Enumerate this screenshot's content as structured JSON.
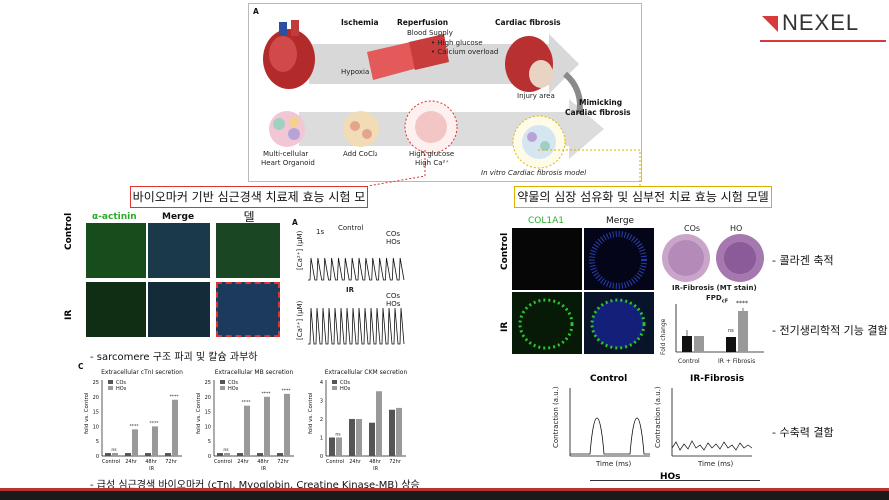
{
  "brand": {
    "logo_text": "NEXEL"
  },
  "panelA": {
    "label": "A",
    "ischemia": "Ischemia",
    "reperfusion": "Reperfusion",
    "blood_supply": "Blood Supply",
    "high_glucose_bullet": "• High glucose",
    "calcium_bullet": "• Calcium overload",
    "hypoxia": "Hypoxia",
    "cardiac_fibrosis": "Cardiac fibrosis",
    "injury_area": "Injury area",
    "mimicking": "Mimicking",
    "mimicking2": "Cardiac fibrosis",
    "organoid1": "Multi-cellular",
    "organoid2": "Heart Organoid",
    "cocl2": "Add CoCl₂",
    "hg1": "High glucose",
    "hg2": "High Ca²⁺",
    "model": "In vitro Cardiac fibrosis model"
  },
  "boxes": {
    "left_title": "바이오마커 기반 심근경색 치료제 효능 시험 모델",
    "right_title": "약물의 심장 섬유화 및 심부전 치료 효능 시험 모델"
  },
  "left": {
    "col1": "α-actinin",
    "col2": "Merge",
    "row1": "Control",
    "row2": "IR",
    "panelA_label": "A",
    "trace1_title": "Control",
    "trace2_title": "IR",
    "legend1": "COs",
    "legend2": "HOs",
    "scale": "1s",
    "yaxis": "[Ca²⁺] (μM)",
    "note1": "- sarcomere 구조 파괴 및 칼슘 과부하",
    "panelC_label": "C",
    "note2": "- 급성 심근경색 바이오마커 (cTnI, Myoglobin, Creatine Kinase-MB) 상승"
  },
  "bars": [
    {
      "title": "Extracellular cTnI secretion",
      "ylabel": "fold vs. Control",
      "ylim": [
        0,
        25
      ],
      "ticks": [
        "0",
        "5",
        "10",
        "15",
        "20",
        "25"
      ],
      "categories": [
        "Control",
        "24hr",
        "48hr",
        "72hr"
      ],
      "xgroup": "IR",
      "cos": [
        1,
        1,
        1,
        1
      ],
      "hos": [
        1,
        9,
        10,
        19
      ],
      "annot": [
        "ns",
        "****",
        "****",
        "****"
      ]
    },
    {
      "title": "Extracellular MB secretion",
      "ylabel": "fold vs. Control",
      "ylim": [
        0,
        25
      ],
      "ticks": [
        "0",
        "5",
        "10",
        "15",
        "20",
        "25"
      ],
      "categories": [
        "Control",
        "24hr",
        "48hr",
        "72hr"
      ],
      "xgroup": "IR",
      "cos": [
        1,
        1,
        1,
        1
      ],
      "hos": [
        1,
        17,
        20,
        21
      ],
      "annot": [
        "ns",
        "****",
        "****",
        "****"
      ]
    },
    {
      "title": "Extracellular CKM secretion",
      "ylabel": "fold vs. Control",
      "ylim": [
        0,
        4
      ],
      "ticks": [
        "0",
        "1",
        "2",
        "3",
        "4"
      ],
      "categories": [
        "Control",
        "24hr",
        "48hr",
        "72hr"
      ],
      "xgroup": "IR",
      "cos": [
        1,
        2,
        1.8,
        2.5
      ],
      "hos": [
        1,
        2,
        3.5,
        2.6
      ],
      "annot": [
        "ns",
        "",
        "",
        ""
      ]
    }
  ],
  "right": {
    "col1": "COL1A1",
    "col2": "Merge",
    "row1": "Control",
    "row2": "IR",
    "he1": "COs",
    "he2": "HO",
    "mt_title": "IR-Fibrosis (MT stain)",
    "fpd": "FPD",
    "fpd_sub": "cF",
    "fold": "Fold change",
    "cats": [
      "Control",
      "IR + Fibrosis"
    ],
    "fpd_ns": "ns",
    "fpd_star": "****",
    "contr1": "Control",
    "contr2": "IR-Fibrosis",
    "contr_y": "Contraction (a.u.)",
    "time": "Time (ms)",
    "hos_label": "HOs",
    "bullet1": "- 콜라겐 축적",
    "bullet2": "- 전기생리학적 기능 결함",
    "bullet3": "- 수축력 결함"
  },
  "chart_data": [
    {
      "type": "bar",
      "title": "Extracellular cTnI secretion",
      "categories": [
        "Control",
        "24hr",
        "48hr",
        "72hr"
      ],
      "series": [
        {
          "name": "COs",
          "values": [
            1,
            1,
            1,
            1
          ]
        },
        {
          "name": "HOs",
          "values": [
            1,
            9,
            10,
            19
          ]
        }
      ],
      "ylabel": "fold vs. Control",
      "ylim": [
        0,
        25
      ]
    },
    {
      "type": "bar",
      "title": "Extracellular MB secretion",
      "categories": [
        "Control",
        "24hr",
        "48hr",
        "72hr"
      ],
      "series": [
        {
          "name": "COs",
          "values": [
            1,
            1,
            1,
            1
          ]
        },
        {
          "name": "HOs",
          "values": [
            1,
            17,
            20,
            21
          ]
        }
      ],
      "ylabel": "fold vs. Control",
      "ylim": [
        0,
        25
      ]
    },
    {
      "type": "bar",
      "title": "Extracellular CKM secretion",
      "categories": [
        "Control",
        "24hr",
        "48hr",
        "72hr"
      ],
      "series": [
        {
          "name": "COs",
          "values": [
            1,
            2,
            1.8,
            2.5
          ]
        },
        {
          "name": "HOs",
          "values": [
            1,
            2,
            3.5,
            2.6
          ]
        }
      ],
      "ylabel": "fold vs. Control",
      "ylim": [
        0,
        4
      ]
    }
  ]
}
